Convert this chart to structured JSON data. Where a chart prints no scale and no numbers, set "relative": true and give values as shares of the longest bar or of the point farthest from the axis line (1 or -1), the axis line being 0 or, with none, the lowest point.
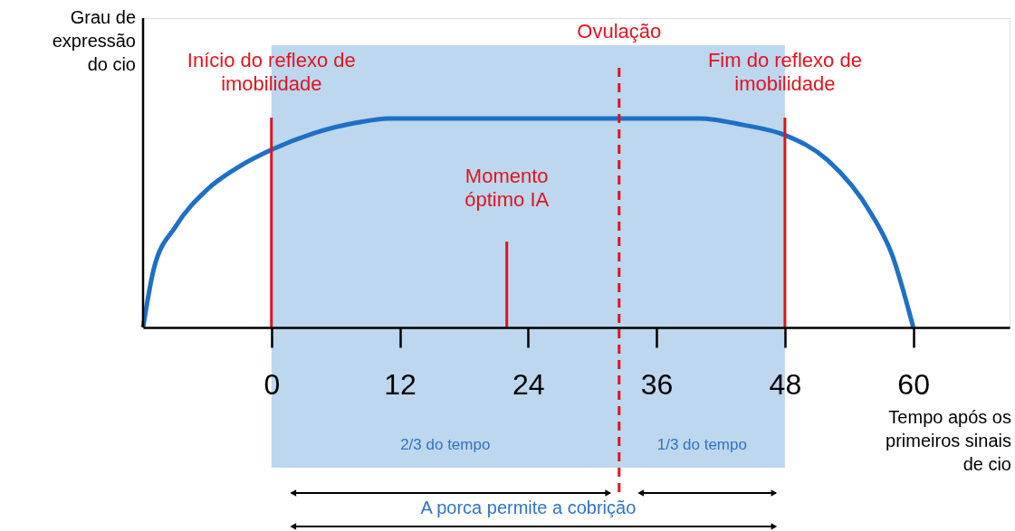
{
  "chart_data": {
    "type": "line",
    "relative": true,
    "ylabel": "Grau de expressão do cio",
    "xlabel": "Tempo após os primeiros sinais de cio",
    "x": [
      -12,
      -11,
      -9,
      -6,
      -3,
      0,
      4,
      8,
      11,
      40,
      44,
      48,
      52,
      56,
      58,
      60
    ],
    "series": [
      {
        "color": "#1f6fc5",
        "values": [
          0,
          0.28,
          0.48,
          0.66,
          0.77,
          0.85,
          0.93,
          0.98,
          1,
          1,
          0.97,
          0.92,
          0.8,
          0.55,
          0.35,
          0
        ]
      }
    ],
    "xlim": [
      -12,
      69
    ],
    "xticks": [
      0,
      12,
      24,
      36,
      48,
      60
    ],
    "grid": false,
    "line_style": "solid",
    "bands": [
      {
        "axis": "x",
        "from": 0,
        "to": 48,
        "color": "#bdd7ee"
      }
    ],
    "ref_lines": [
      {
        "axis": "x",
        "value": 0,
        "label": "Início do reflexo de imobilidade",
        "color": "#e0141e",
        "line_style": "solid"
      },
      {
        "axis": "x",
        "value": 48,
        "label": "Fim do reflexo de imobilidade",
        "color": "#e0141e",
        "line_style": "solid"
      },
      {
        "axis": "x",
        "value": 32.5,
        "label": "Ovulação",
        "color": "#e0141e",
        "line_style": "dashed"
      },
      {
        "axis": "x",
        "value": 22,
        "label": "Momento óptimo IA",
        "color": "#e0141e",
        "line_style": "solid"
      }
    ],
    "annotations": [
      "2/3 do tempo",
      "1/3 do tempo",
      "A porca permite a cobrição"
    ]
  }
}
